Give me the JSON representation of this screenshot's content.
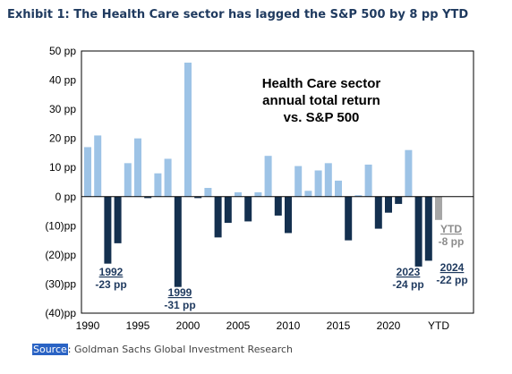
{
  "exhibit_title": "Exhibit 1: The Health Care sector has lagged the S&P 500 by 8 pp YTD",
  "source_label": "Source",
  "source_text": ": Goldman Sachs Global Investment Research",
  "colors": {
    "positive": "#9dc3e6",
    "negative": "#14304f",
    "ytd": "#a6a6a6",
    "ytd_text": "#8c8c8c",
    "annotation": "#1f3a5f",
    "axis": "#000000",
    "border": "#000000"
  },
  "chart_data": {
    "type": "bar",
    "title": "Health Care sector annual total return vs. S&P 500",
    "title_lines": [
      "Health Care sector",
      "annual total return",
      "vs. S&P 500"
    ],
    "unit": "pp",
    "ylim": [
      -40,
      50
    ],
    "y_ticks": [
      50,
      40,
      30,
      20,
      10,
      0,
      -10,
      -20,
      -30,
      -40
    ],
    "y_tick_labels": [
      "50 pp",
      "40 pp",
      "30 pp",
      "20 pp",
      "10 pp",
      "0 pp",
      "(10)pp",
      "(20)pp",
      "(30)pp",
      "(40)pp"
    ],
    "x_tick_labels": [
      {
        "label": "1990",
        "year": 1990
      },
      {
        "label": "1995",
        "year": 1995
      },
      {
        "label": "2000",
        "year": 2000
      },
      {
        "label": "2005",
        "year": 2005
      },
      {
        "label": "2010",
        "year": 2010
      },
      {
        "label": "2015",
        "year": 2015
      },
      {
        "label": "2020",
        "year": 2020
      },
      {
        "label": "YTD",
        "year": 2025
      }
    ],
    "years": [
      1990,
      1991,
      1992,
      1993,
      1994,
      1995,
      1996,
      1997,
      1998,
      1999,
      2000,
      2001,
      2002,
      2003,
      2004,
      2005,
      2006,
      2007,
      2008,
      2009,
      2010,
      2011,
      2012,
      2013,
      2014,
      2015,
      2016,
      2017,
      2018,
      2019,
      2020,
      2021,
      2022,
      2023,
      2024
    ],
    "values": [
      17,
      21,
      -23,
      -16,
      11.5,
      20,
      -0.5,
      8,
      13,
      -31,
      46,
      -0.5,
      3,
      -14,
      -9,
      1.5,
      -8.5,
      1.5,
      14,
      -6.5,
      -12.5,
      10.5,
      2,
      9,
      11.5,
      5.5,
      -15,
      0.5,
      11,
      -11,
      -5.5,
      -2.5,
      16,
      -24,
      -22
    ],
    "ytd": {
      "label": "YTD",
      "value": -8
    },
    "annotations": [
      {
        "year_label": "1992",
        "value_label": "-23 pp",
        "year": 1992
      },
      {
        "year_label": "1999",
        "value_label": "-31 pp",
        "year": 1999
      },
      {
        "year_label": "2023",
        "value_label": "-24 pp",
        "year": 2023
      },
      {
        "year_label": "2024",
        "value_label": "-22 pp",
        "year": 2024
      },
      {
        "year_label": "YTD",
        "value_label": "-8 pp",
        "year": 2025
      }
    ],
    "legend": "none",
    "grid": false
  }
}
